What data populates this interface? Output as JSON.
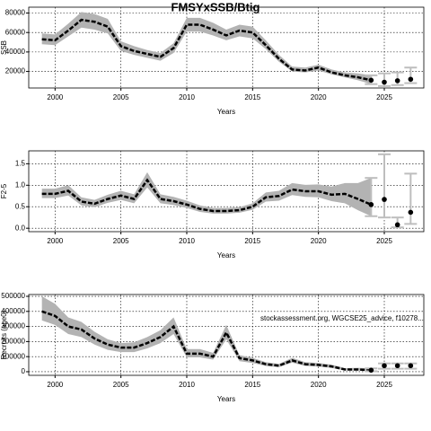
{
  "chart_data": [
    {
      "type": "line",
      "title": "FMSYxSSB/Btig",
      "ylabel": "SSB",
      "xlabel": "Years",
      "x": [
        1999,
        2000,
        2001,
        2002,
        2003,
        2004,
        2005,
        2006,
        2007,
        2008,
        2009,
        2010,
        2011,
        2012,
        2013,
        2014,
        2015,
        2016,
        2017,
        2018,
        2019,
        2020,
        2021,
        2022,
        2023,
        2024
      ],
      "values": [
        53000,
        52000,
        62000,
        73000,
        71000,
        66000,
        46000,
        41000,
        38000,
        35000,
        44000,
        68000,
        68000,
        63000,
        57000,
        62000,
        60000,
        47000,
        33000,
        22000,
        21000,
        24000,
        19000,
        16000,
        14000,
        11000
      ],
      "lower": [
        48000,
        47000,
        56000,
        65000,
        63000,
        59000,
        41000,
        37000,
        34000,
        31000,
        39000,
        61000,
        61000,
        57000,
        52000,
        56000,
        54000,
        43000,
        30000,
        20000,
        19000,
        21000,
        17000,
        14000,
        11000,
        7000
      ],
      "upper": [
        59000,
        58000,
        69000,
        81000,
        79000,
        74000,
        51000,
        46000,
        42000,
        39000,
        49000,
        75000,
        75000,
        70000,
        63000,
        68000,
        66000,
        52000,
        37000,
        25000,
        24000,
        27000,
        22000,
        19000,
        18000,
        16000
      ],
      "projection": {
        "x": [
          2024,
          2025,
          2026,
          2027
        ],
        "values": [
          11000,
          9000,
          10500,
          12000
        ],
        "lower": [
          7000,
          5000,
          6000,
          8000
        ],
        "upper": [
          16000,
          18000,
          19000,
          24000
        ]
      },
      "line_color": "#000000",
      "band_color": "#b3b3b3",
      "bar_color": "#bebebe",
      "xlim": [
        1998,
        2028
      ],
      "xticks": [
        2000,
        2005,
        2010,
        2015,
        2020,
        2025
      ],
      "ylim": [
        3000,
        86000
      ],
      "yticks": [
        20000,
        40000,
        60000,
        80000
      ],
      "grid": true
    },
    {
      "type": "line",
      "ylabel": "F2-5",
      "xlabel": "Years",
      "x": [
        1999,
        2000,
        2001,
        2002,
        2003,
        2004,
        2005,
        2006,
        2007,
        2008,
        2009,
        2010,
        2011,
        2012,
        2013,
        2014,
        2015,
        2016,
        2017,
        2018,
        2019,
        2020,
        2021,
        2022,
        2023,
        2024
      ],
      "values": [
        0.8,
        0.8,
        0.87,
        0.62,
        0.57,
        0.68,
        0.76,
        0.68,
        1.12,
        0.68,
        0.63,
        0.55,
        0.45,
        0.4,
        0.4,
        0.42,
        0.5,
        0.72,
        0.75,
        0.9,
        0.86,
        0.86,
        0.78,
        0.8,
        0.68,
        0.55
      ],
      "lower": [
        0.7,
        0.7,
        0.76,
        0.53,
        0.49,
        0.59,
        0.66,
        0.58,
        0.95,
        0.58,
        0.54,
        0.47,
        0.38,
        0.34,
        0.34,
        0.36,
        0.43,
        0.62,
        0.64,
        0.77,
        0.73,
        0.72,
        0.63,
        0.58,
        0.42,
        0.28
      ],
      "upper": [
        0.92,
        0.92,
        1.0,
        0.72,
        0.66,
        0.78,
        0.87,
        0.79,
        1.3,
        0.79,
        0.73,
        0.64,
        0.53,
        0.47,
        0.47,
        0.49,
        0.58,
        0.83,
        0.87,
        1.05,
        1.01,
        1.02,
        0.97,
        1.05,
        1.05,
        1.17
      ],
      "projection": {
        "x": [
          2024,
          2025,
          2026,
          2027
        ],
        "values": [
          0.55,
          0.67,
          0.08,
          0.37
        ],
        "lower": [
          0.28,
          0.25,
          0.02,
          0.1
        ],
        "upper": [
          1.17,
          1.72,
          0.25,
          1.27
        ]
      },
      "line_color": "#000000",
      "band_color": "#b3b3b3",
      "bar_color": "#bebebe",
      "xlim": [
        1998,
        2028
      ],
      "xticks": [
        2000,
        2005,
        2010,
        2015,
        2020,
        2025
      ],
      "ylim": [
        -0.08,
        1.8
      ],
      "yticks": [
        {
          "value": 0,
          "label": "0.0"
        },
        0.5,
        {
          "value": 1,
          "label": "1.0"
        },
        1.5
      ],
      "grid": true
    },
    {
      "type": "line",
      "ylabel": "Recruits (age0)",
      "xlabel": "Years",
      "annotation": "stockassessment.org, WGCSE25_advice, f10278...",
      "x": [
        1999,
        2000,
        2001,
        2002,
        2003,
        2004,
        2005,
        2006,
        2007,
        2008,
        2009,
        2010,
        2011,
        2012,
        2013,
        2014,
        2015,
        2016,
        2017,
        2018,
        2019,
        2020,
        2021,
        2022,
        2023,
        2024
      ],
      "values": [
        400000,
        370000,
        300000,
        280000,
        220000,
        180000,
        160000,
        160000,
        190000,
        230000,
        300000,
        120000,
        120000,
        100000,
        260000,
        90000,
        75000,
        50000,
        40000,
        75000,
        50000,
        45000,
        35000,
        15000,
        15000,
        10000
      ],
      "lower": [
        340000,
        310000,
        250000,
        230000,
        180000,
        145000,
        130000,
        130000,
        155000,
        190000,
        250000,
        95000,
        95000,
        80000,
        215000,
        70000,
        58000,
        38000,
        30000,
        60000,
        38000,
        34000,
        25000,
        8000,
        7000,
        3000
      ],
      "upper": [
        500000,
        450000,
        360000,
        330000,
        265000,
        215000,
        190000,
        195000,
        230000,
        275000,
        360000,
        150000,
        150000,
        125000,
        310000,
        110000,
        92000,
        63000,
        52000,
        92000,
        63000,
        58000,
        47000,
        24000,
        26000,
        22000
      ],
      "projection": {
        "x": [
          2024,
          2025,
          2026,
          2027
        ],
        "values": [
          10000,
          40000,
          40000,
          40000
        ],
        "lower": [
          3000,
          20000,
          20000,
          20000
        ],
        "upper": [
          22000,
          55000,
          55000,
          55000
        ]
      },
      "line_color": "#000000",
      "band_color": "#b3b3b3",
      "bar_color": "#bebebe",
      "xlim": [
        1998,
        2028
      ],
      "xticks": [
        2000,
        2005,
        2010,
        2015,
        2020,
        2025
      ],
      "ylim": [
        -24000,
        512000
      ],
      "yticks": [
        0,
        100000,
        200000,
        300000,
        400000,
        500000
      ],
      "grid": true
    }
  ]
}
